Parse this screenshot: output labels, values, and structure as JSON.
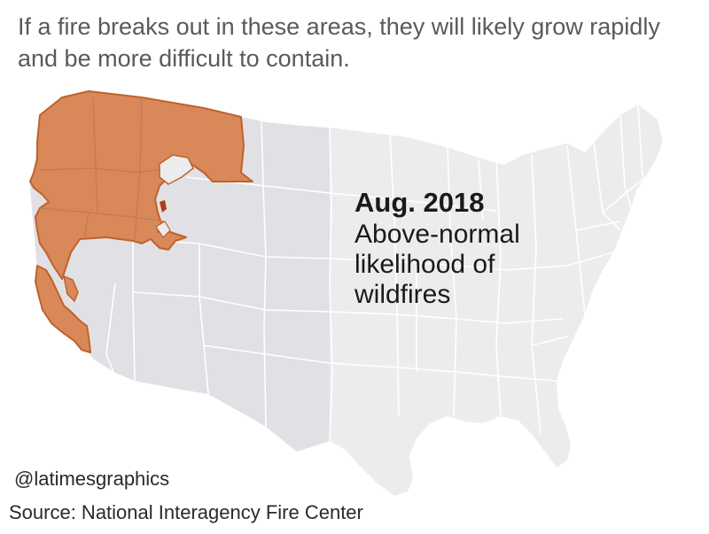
{
  "headline": "If a fire breaks out in these areas, they will likely grow rapidly and be more difficult to contain.",
  "legend": {
    "date": "Aug. 2018",
    "description": "Above-normal likelihood of wildfires"
  },
  "credit": "@latimesgraphics",
  "source": "Source: National Interagency Fire Center",
  "colors": {
    "risk_area": "#d9885a",
    "risk_outline": "#c0622b",
    "risk_dark": "#a8401a",
    "land_light": "#ececee",
    "land_shade": "#e1e1e5",
    "borders": "#ffffff"
  },
  "map": {
    "region": "contiguous-united-states",
    "highlighted_states": [
      "Washington",
      "Oregon",
      "Idaho",
      "Montana",
      "Northern Nevada",
      "Northern California",
      "Southern California coast",
      "Northwest Wyoming",
      "Northern Utah"
    ]
  }
}
